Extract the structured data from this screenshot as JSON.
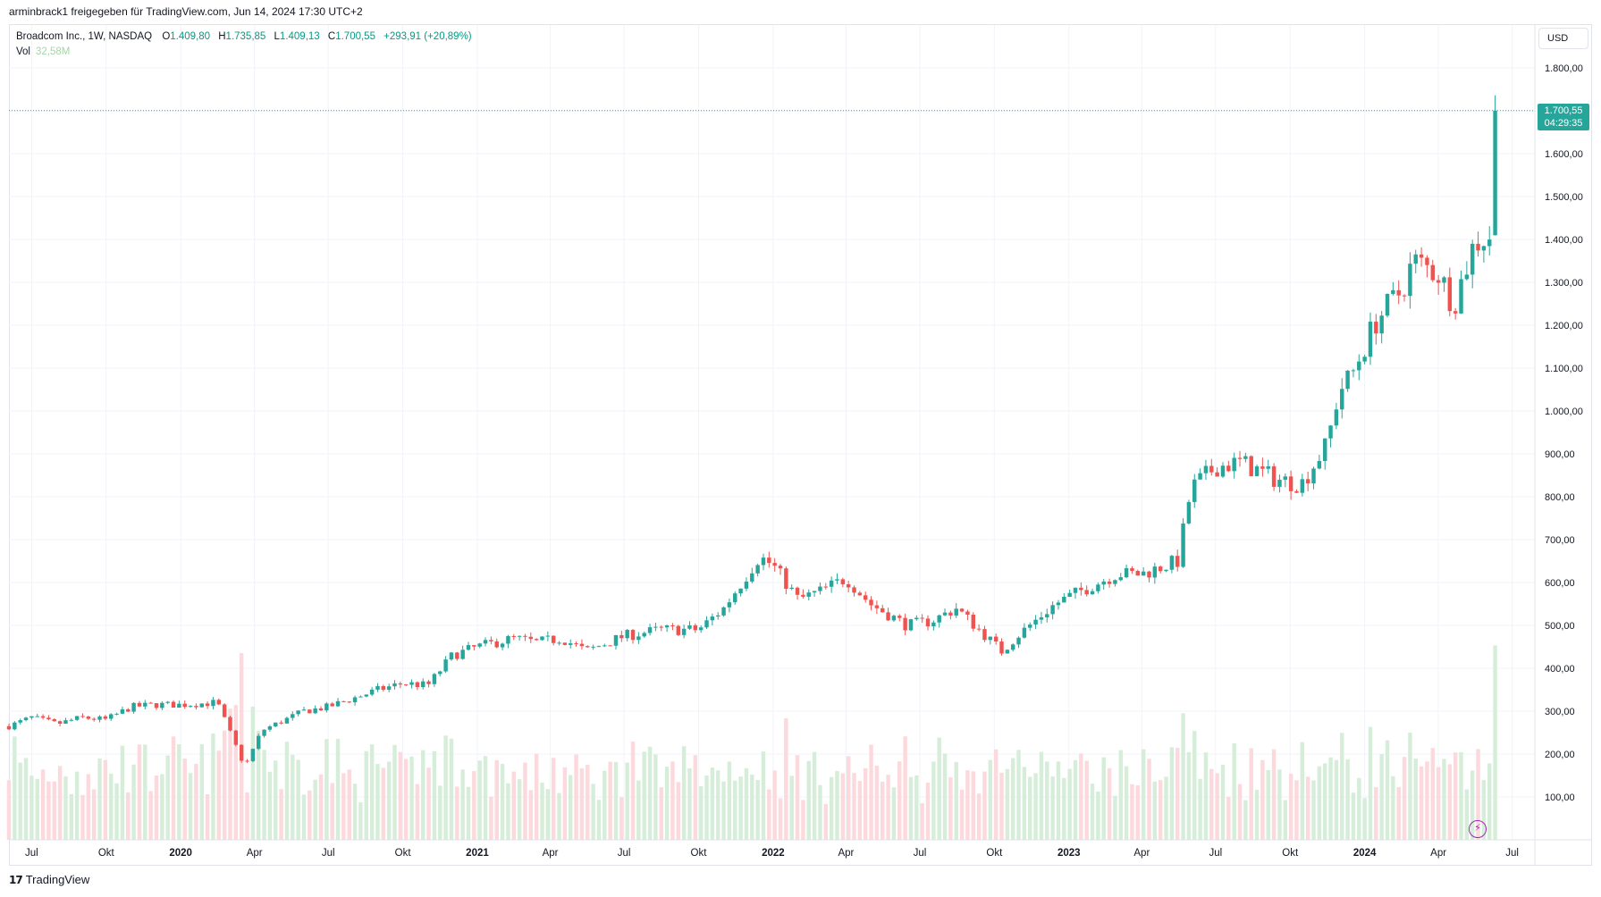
{
  "header": {
    "share_text": "arminbrack1 freigegeben für TradingView.com, Jun 14, 2024 17:30 UTC+2"
  },
  "legend": {
    "symbol": "Broadcom Inc., 1W, NASDAQ",
    "open_label": "O",
    "open": "1.409,80",
    "high_label": "H",
    "high": "1.735,85",
    "low_label": "L",
    "low": "1.409,13",
    "close_label": "C",
    "close": "1.700,55",
    "change": "+293,91 (+20,89%)",
    "vol_label": "Vol",
    "vol": "32,58M"
  },
  "currency": "USD",
  "last_price": {
    "price": "1.700,55",
    "countdown": "04:29:35"
  },
  "footer": {
    "brand": "TradingView"
  },
  "colors": {
    "up": "#26a69a",
    "down": "#ef5350",
    "vol_up": "#d6eed9",
    "vol_down": "#fbd9dc",
    "grid": "#f0f3fa",
    "text": "#131722"
  },
  "chart_data": {
    "type": "candlestick",
    "title": "Broadcom Inc., 1W, NASDAQ",
    "ylim": [
      0,
      1900
    ],
    "y_ticks": [
      100,
      200,
      300,
      400,
      500,
      600,
      700,
      800,
      900,
      1000,
      1100,
      1200,
      1300,
      1400,
      1500,
      1600,
      1700,
      1800
    ],
    "y_tick_labels": [
      "100,00",
      "200,00",
      "300,00",
      "400,00",
      "500,00",
      "600,00",
      "700,00",
      "800,00",
      "900,00",
      "1.000,00",
      "1.100,00",
      "1.200,00",
      "1.300,00",
      "1.400,00",
      "1.500,00",
      "1.600,00",
      "1.700,00",
      "1.800,00"
    ],
    "x_range": [
      "2019-06-03",
      "2024-07-29"
    ],
    "x_ticks": [
      {
        "date": "2019-07-01",
        "label": "Jul",
        "bold": false
      },
      {
        "date": "2019-10-01",
        "label": "Okt",
        "bold": false
      },
      {
        "date": "2020-01-01",
        "label": "2020",
        "bold": true
      },
      {
        "date": "2020-04-01",
        "label": "Apr",
        "bold": false
      },
      {
        "date": "2020-07-01",
        "label": "Jul",
        "bold": false
      },
      {
        "date": "2020-10-01",
        "label": "Okt",
        "bold": false
      },
      {
        "date": "2021-01-01",
        "label": "2021",
        "bold": true
      },
      {
        "date": "2021-04-01",
        "label": "Apr",
        "bold": false
      },
      {
        "date": "2021-07-01",
        "label": "Jul",
        "bold": false
      },
      {
        "date": "2021-10-01",
        "label": "Okt",
        "bold": false
      },
      {
        "date": "2022-01-01",
        "label": "2022",
        "bold": true
      },
      {
        "date": "2022-04-01",
        "label": "Apr",
        "bold": false
      },
      {
        "date": "2022-07-01",
        "label": "Jul",
        "bold": false
      },
      {
        "date": "2022-10-01",
        "label": "Okt",
        "bold": false
      },
      {
        "date": "2023-01-01",
        "label": "2023",
        "bold": true
      },
      {
        "date": "2023-04-01",
        "label": "Apr",
        "bold": false
      },
      {
        "date": "2023-07-01",
        "label": "Jul",
        "bold": false
      },
      {
        "date": "2023-10-01",
        "label": "Okt",
        "bold": false
      },
      {
        "date": "2024-01-01",
        "label": "2024",
        "bold": true
      },
      {
        "date": "2024-04-01",
        "label": "Apr",
        "bold": false
      },
      {
        "date": "2024-07-01",
        "label": "Jul",
        "bold": false
      }
    ],
    "first_week": "2019-06-03",
    "close_anchors": [
      [
        "2019-06-03",
        265
      ],
      [
        "2019-07-01",
        285
      ],
      [
        "2019-08-01",
        270
      ],
      [
        "2019-09-01",
        285
      ],
      [
        "2019-10-01",
        280
      ],
      [
        "2019-11-01",
        310
      ],
      [
        "2019-12-01",
        315
      ],
      [
        "2020-01-01",
        315
      ],
      [
        "2020-02-15",
        320
      ],
      [
        "2020-03-20",
        170
      ],
      [
        "2020-04-10",
        255
      ],
      [
        "2020-06-01",
        300
      ],
      [
        "2020-07-01",
        310
      ],
      [
        "2020-09-01",
        350
      ],
      [
        "2020-10-01",
        365
      ],
      [
        "2020-11-01",
        360
      ],
      [
        "2020-12-01",
        430
      ],
      [
        "2021-01-01",
        450
      ],
      [
        "2021-02-15",
        470
      ],
      [
        "2021-03-15",
        460
      ],
      [
        "2021-04-15",
        470
      ],
      [
        "2021-05-15",
        440
      ],
      [
        "2021-07-01",
        475
      ],
      [
        "2021-08-15",
        490
      ],
      [
        "2021-10-01",
        490
      ],
      [
        "2021-11-01",
        540
      ],
      [
        "2021-12-15",
        660
      ],
      [
        "2022-01-01",
        640
      ],
      [
        "2022-02-01",
        560
      ],
      [
        "2022-03-01",
        580
      ],
      [
        "2022-04-01",
        610
      ],
      [
        "2022-05-01",
        550
      ],
      [
        "2022-06-15",
        500
      ],
      [
        "2022-07-15",
        510
      ],
      [
        "2022-08-15",
        540
      ],
      [
        "2022-09-01",
        510
      ],
      [
        "2022-10-10",
        440
      ],
      [
        "2022-11-01",
        480
      ],
      [
        "2022-12-15",
        550
      ],
      [
        "2023-01-15",
        580
      ],
      [
        "2023-03-01",
        620
      ],
      [
        "2023-04-01",
        620
      ],
      [
        "2023-05-15",
        650
      ],
      [
        "2023-06-01",
        820
      ],
      [
        "2023-07-01",
        870
      ],
      [
        "2023-08-01",
        880
      ],
      [
        "2023-09-15",
        840
      ],
      [
        "2023-10-15",
        830
      ],
      [
        "2023-11-15",
        920
      ],
      [
        "2023-12-01",
        1050
      ],
      [
        "2023-12-15",
        1080
      ],
      [
        "2024-01-15",
        1210
      ],
      [
        "2024-02-15",
        1280
      ],
      [
        "2024-03-01",
        1350
      ],
      [
        "2024-04-01",
        1320
      ],
      [
        "2024-04-20",
        1250
      ],
      [
        "2024-05-15",
        1390
      ],
      [
        "2024-06-03",
        1409.8
      ]
    ],
    "last_candle": {
      "week": "2024-06-10",
      "open": 1409.8,
      "high": 1735.85,
      "low": 1409.13,
      "close": 1700.55
    },
    "volume_scale_max": 500,
    "volume_last": 32.58
  }
}
